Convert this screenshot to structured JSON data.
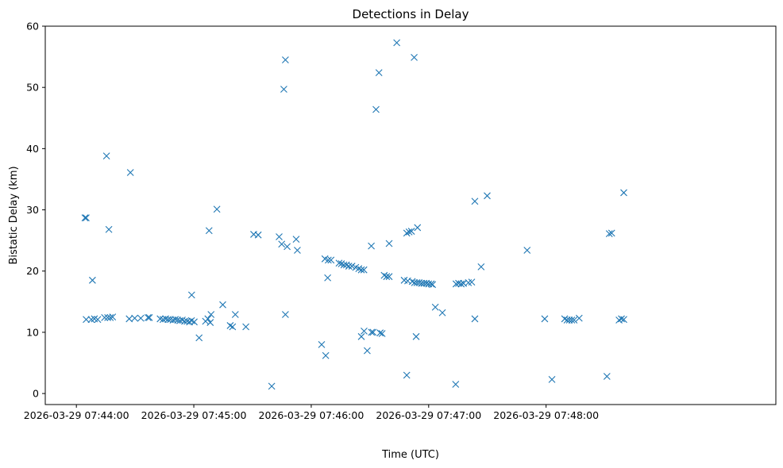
{
  "chart_data": {
    "type": "scatter",
    "title": "Detections in Delay",
    "xlabel": "Time (UTC)",
    "ylabel": "Bistatic Delay (km)",
    "marker": "x",
    "color": "#1f77b4",
    "xlim_seconds": [
      -15.9,
      357.4
    ],
    "ylim": [
      -1.8,
      60
    ],
    "x_ticks": [
      {
        "t": 0,
        "label": "2026-03-29 07:44:00"
      },
      {
        "t": 60,
        "label": "2026-03-29 07:45:00"
      },
      {
        "t": 120,
        "label": "2026-03-29 07:46:00"
      },
      {
        "t": 180,
        "label": "2026-03-29 07:47:00"
      },
      {
        "t": 240,
        "label": "2026-03-29 07:48:00"
      }
    ],
    "y_ticks": [
      0,
      10,
      20,
      30,
      40,
      50,
      60
    ],
    "x_axis_note": "x values are seconds after 2026-03-29 07:44:00 UTC",
    "points": [
      {
        "x": 4.4,
        "y": 28.7
      },
      {
        "x": 5.0,
        "y": 28.7
      },
      {
        "x": 5.0,
        "y": 12.1
      },
      {
        "x": 7.6,
        "y": 12.1
      },
      {
        "x": 9.2,
        "y": 12.2
      },
      {
        "x": 10.9,
        "y": 12.1
      },
      {
        "x": 8.2,
        "y": 18.5
      },
      {
        "x": 14.4,
        "y": 12.4
      },
      {
        "x": 16.0,
        "y": 12.4
      },
      {
        "x": 17.3,
        "y": 12.4
      },
      {
        "x": 18.5,
        "y": 12.5
      },
      {
        "x": 15.4,
        "y": 38.8
      },
      {
        "x": 16.6,
        "y": 26.8
      },
      {
        "x": 27.6,
        "y": 36.1
      },
      {
        "x": 27.0,
        "y": 12.2
      },
      {
        "x": 29.8,
        "y": 12.3
      },
      {
        "x": 32.9,
        "y": 12.3
      },
      {
        "x": 36.6,
        "y": 12.4
      },
      {
        "x": 37.3,
        "y": 12.4
      },
      {
        "x": 42.8,
        "y": 12.2
      },
      {
        "x": 44.3,
        "y": 12.1
      },
      {
        "x": 45.6,
        "y": 12.2
      },
      {
        "x": 46.8,
        "y": 12.1
      },
      {
        "x": 48.0,
        "y": 12.1
      },
      {
        "x": 49.4,
        "y": 12.0
      },
      {
        "x": 50.5,
        "y": 12.1
      },
      {
        "x": 51.7,
        "y": 12.0
      },
      {
        "x": 52.9,
        "y": 11.9
      },
      {
        "x": 54.1,
        "y": 12.0
      },
      {
        "x": 55.3,
        "y": 11.8
      },
      {
        "x": 56.6,
        "y": 11.8
      },
      {
        "x": 57.8,
        "y": 11.7
      },
      {
        "x": 58.8,
        "y": 11.9
      },
      {
        "x": 60.2,
        "y": 11.7
      },
      {
        "x": 58.9,
        "y": 16.1
      },
      {
        "x": 62.7,
        "y": 9.1
      },
      {
        "x": 66.0,
        "y": 11.8
      },
      {
        "x": 67.2,
        "y": 12.2
      },
      {
        "x": 68.4,
        "y": 11.6
      },
      {
        "x": 68.8,
        "y": 12.9
      },
      {
        "x": 67.8,
        "y": 26.6
      },
      {
        "x": 71.8,
        "y": 30.1
      },
      {
        "x": 74.8,
        "y": 14.5
      },
      {
        "x": 78.6,
        "y": 11.1
      },
      {
        "x": 79.8,
        "y": 10.9
      },
      {
        "x": 81.2,
        "y": 12.9
      },
      {
        "x": 86.6,
        "y": 10.9
      },
      {
        "x": 90.6,
        "y": 26.0
      },
      {
        "x": 92.9,
        "y": 25.9
      },
      {
        "x": 99.8,
        "y": 1.2
      },
      {
        "x": 103.6,
        "y": 25.6
      },
      {
        "x": 104.9,
        "y": 24.4
      },
      {
        "x": 106.0,
        "y": 49.7
      },
      {
        "x": 106.8,
        "y": 54.5
      },
      {
        "x": 106.8,
        "y": 12.9
      },
      {
        "x": 107.7,
        "y": 24.0
      },
      {
        "x": 112.3,
        "y": 25.2
      },
      {
        "x": 112.9,
        "y": 23.4
      },
      {
        "x": 125.3,
        "y": 8.0
      },
      {
        "x": 127.4,
        "y": 6.2
      },
      {
        "x": 127.0,
        "y": 22.0
      },
      {
        "x": 128.7,
        "y": 21.8
      },
      {
        "x": 130.1,
        "y": 21.8
      },
      {
        "x": 128.4,
        "y": 18.9
      },
      {
        "x": 134.2,
        "y": 21.3
      },
      {
        "x": 135.4,
        "y": 21.2
      },
      {
        "x": 136.7,
        "y": 21.0
      },
      {
        "x": 138.0,
        "y": 21.0
      },
      {
        "x": 139.2,
        "y": 20.8
      },
      {
        "x": 140.8,
        "y": 20.8
      },
      {
        "x": 142.7,
        "y": 20.6
      },
      {
        "x": 144.3,
        "y": 20.4
      },
      {
        "x": 145.6,
        "y": 20.2
      },
      {
        "x": 146.9,
        "y": 20.2
      },
      {
        "x": 145.6,
        "y": 9.3
      },
      {
        "x": 147.0,
        "y": 10.2
      },
      {
        "x": 148.6,
        "y": 7.0
      },
      {
        "x": 150.7,
        "y": 24.1
      },
      {
        "x": 150.8,
        "y": 10.0
      },
      {
        "x": 151.6,
        "y": 10.0
      },
      {
        "x": 153.1,
        "y": 46.4
      },
      {
        "x": 154.6,
        "y": 52.4
      },
      {
        "x": 155.2,
        "y": 9.9
      },
      {
        "x": 156.2,
        "y": 9.8
      },
      {
        "x": 157.3,
        "y": 19.3
      },
      {
        "x": 158.5,
        "y": 19.1
      },
      {
        "x": 159.8,
        "y": 19.1
      },
      {
        "x": 159.8,
        "y": 24.5
      },
      {
        "x": 163.7,
        "y": 57.3
      },
      {
        "x": 167.5,
        "y": 18.5
      },
      {
        "x": 169.3,
        "y": 18.4
      },
      {
        "x": 168.8,
        "y": 26.2
      },
      {
        "x": 170.0,
        "y": 26.4
      },
      {
        "x": 171.2,
        "y": 26.5
      },
      {
        "x": 168.8,
        "y": 3.0
      },
      {
        "x": 172.6,
        "y": 54.9
      },
      {
        "x": 174.3,
        "y": 27.1
      },
      {
        "x": 173.6,
        "y": 9.3
      },
      {
        "x": 171.6,
        "y": 18.3
      },
      {
        "x": 172.8,
        "y": 18.1
      },
      {
        "x": 174.0,
        "y": 18.1
      },
      {
        "x": 175.1,
        "y": 18.1
      },
      {
        "x": 176.4,
        "y": 18.0
      },
      {
        "x": 177.6,
        "y": 18.0
      },
      {
        "x": 178.8,
        "y": 18.0
      },
      {
        "x": 180.0,
        "y": 17.9
      },
      {
        "x": 181.3,
        "y": 17.9
      },
      {
        "x": 182.0,
        "y": 17.8
      },
      {
        "x": 183.4,
        "y": 14.1
      },
      {
        "x": 187.0,
        "y": 13.2
      },
      {
        "x": 193.8,
        "y": 1.5
      },
      {
        "x": 194.0,
        "y": 17.9
      },
      {
        "x": 195.3,
        "y": 18.0
      },
      {
        "x": 196.6,
        "y": 17.9
      },
      {
        "x": 197.8,
        "y": 18.0
      },
      {
        "x": 200.3,
        "y": 18.1
      },
      {
        "x": 202.0,
        "y": 18.2
      },
      {
        "x": 203.6,
        "y": 31.4
      },
      {
        "x": 203.6,
        "y": 12.2
      },
      {
        "x": 206.8,
        "y": 20.7
      },
      {
        "x": 209.9,
        "y": 32.3
      },
      {
        "x": 230.3,
        "y": 23.4
      },
      {
        "x": 239.3,
        "y": 12.2
      },
      {
        "x": 243.0,
        "y": 2.3
      },
      {
        "x": 249.5,
        "y": 12.2
      },
      {
        "x": 250.7,
        "y": 12.0
      },
      {
        "x": 251.9,
        "y": 12.0
      },
      {
        "x": 253.1,
        "y": 12.0
      },
      {
        "x": 254.3,
        "y": 12.0
      },
      {
        "x": 256.9,
        "y": 12.3
      },
      {
        "x": 271.1,
        "y": 2.8
      },
      {
        "x": 272.3,
        "y": 26.1
      },
      {
        "x": 273.5,
        "y": 26.2
      },
      {
        "x": 277.3,
        "y": 12.0
      },
      {
        "x": 278.5,
        "y": 12.2
      },
      {
        "x": 279.7,
        "y": 12.1
      },
      {
        "x": 279.7,
        "y": 32.8
      }
    ]
  }
}
